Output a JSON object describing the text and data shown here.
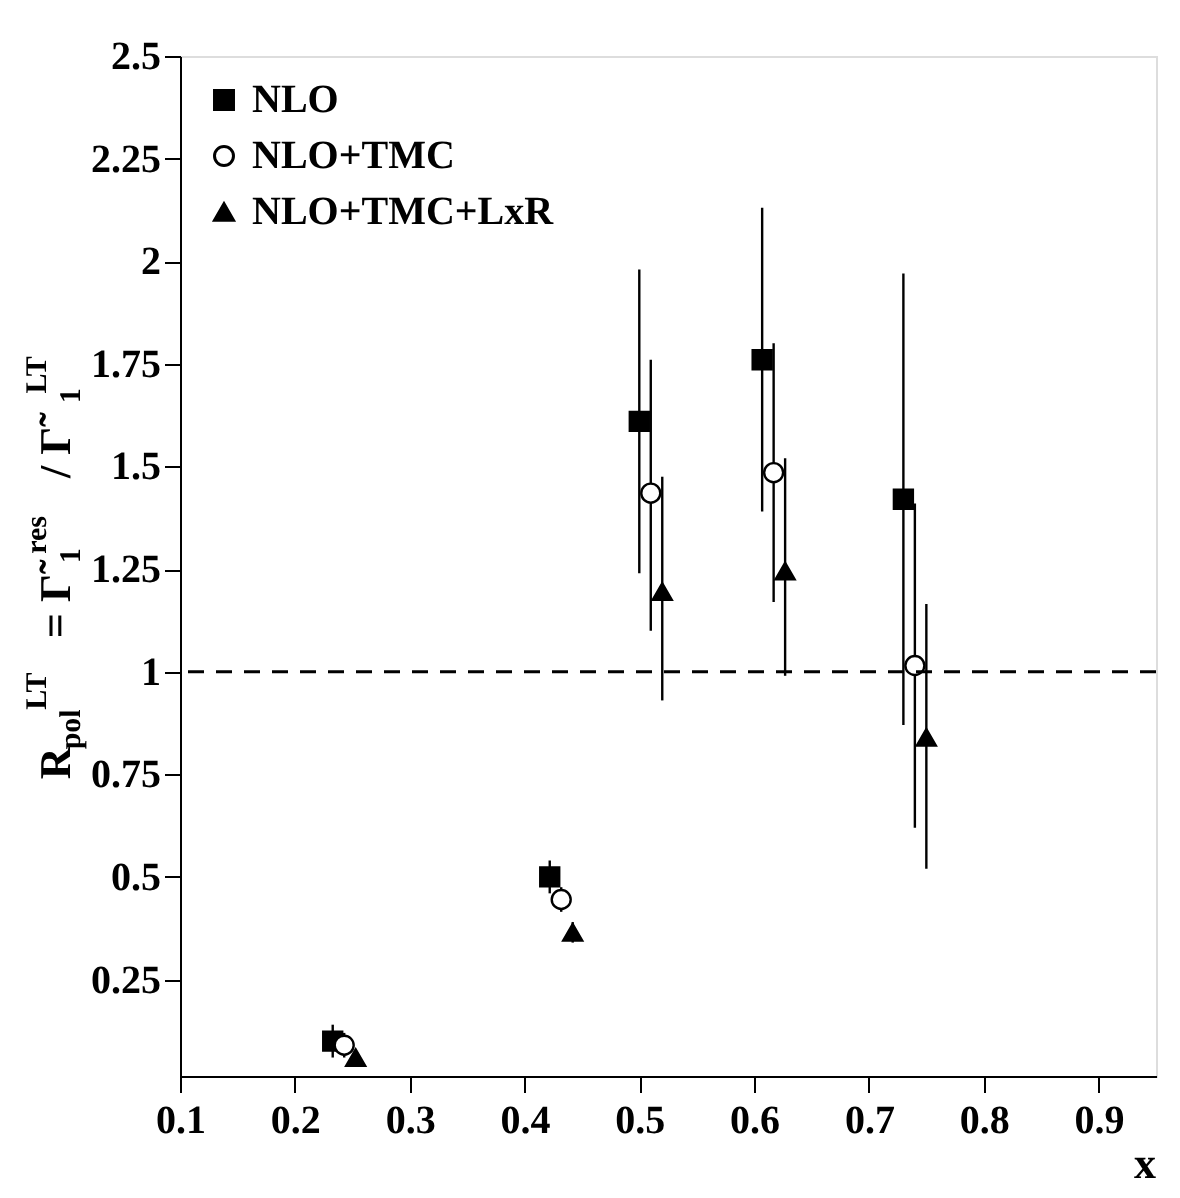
{
  "chart_data": {
    "type": "scatter",
    "xlabel": "x",
    "ylabel": "R$_{pol}$$^{LT}$ = Γ̃$_{1}$$^{res}$ / Γ̃$_{1}$$^{LT}$",
    "xlim": [
      0.1,
      0.95
    ],
    "xticks": [
      0.1,
      0.2,
      0.3,
      0.4,
      0.5,
      0.6,
      0.7,
      0.8,
      0.9
    ],
    "ylim": [
      0.015,
      2.5
    ],
    "yticks": [
      0.25,
      0.5,
      0.75,
      1,
      1.25,
      1.5,
      1.75,
      2,
      2.25,
      2.5
    ],
    "legend": "top left",
    "grid": false,
    "series": [
      {
        "name": "NLO",
        "color": "#000000",
        "marker": "square",
        "x": [
          0.233,
          0.422,
          0.5,
          0.607,
          0.73
        ],
        "values": [
          0.1,
          0.5,
          1.61,
          1.76,
          1.42
        ],
        "errors": [
          0.04,
          0.04,
          [
            1.24,
            1.98
          ],
          [
            1.39,
            2.13
          ],
          [
            0.87,
            1.97
          ]
        ]
      },
      {
        "name": "NLO+TMC",
        "color": "#000000",
        "marker": "circle",
        "x": [
          0.243,
          0.432,
          0.51,
          0.617,
          0.74
        ],
        "values": [
          0.09,
          0.445,
          1.435,
          1.485,
          1.015
        ],
        "errors": [
          0.03,
          0.03,
          [
            1.1,
            1.76
          ],
          [
            1.17,
            1.8
          ],
          [
            0.62,
            1.41
          ]
        ]
      },
      {
        "name": "NLO+TMC+LxR",
        "color": "#000000",
        "marker": "triangle",
        "x": [
          0.253,
          0.442,
          0.52,
          0.627,
          0.75
        ],
        "values": [
          0.06,
          0.365,
          1.195,
          1.245,
          0.84
        ],
        "errors": [
          0.015,
          0.025,
          [
            0.93,
            1.475
          ],
          [
            0.99,
            1.52
          ],
          [
            0.52,
            1.165
          ]
        ]
      }
    ],
    "ref_lines": [
      {
        "axis": "y",
        "value": 1,
        "line_style": "dashed",
        "color": "#000000"
      }
    ]
  }
}
